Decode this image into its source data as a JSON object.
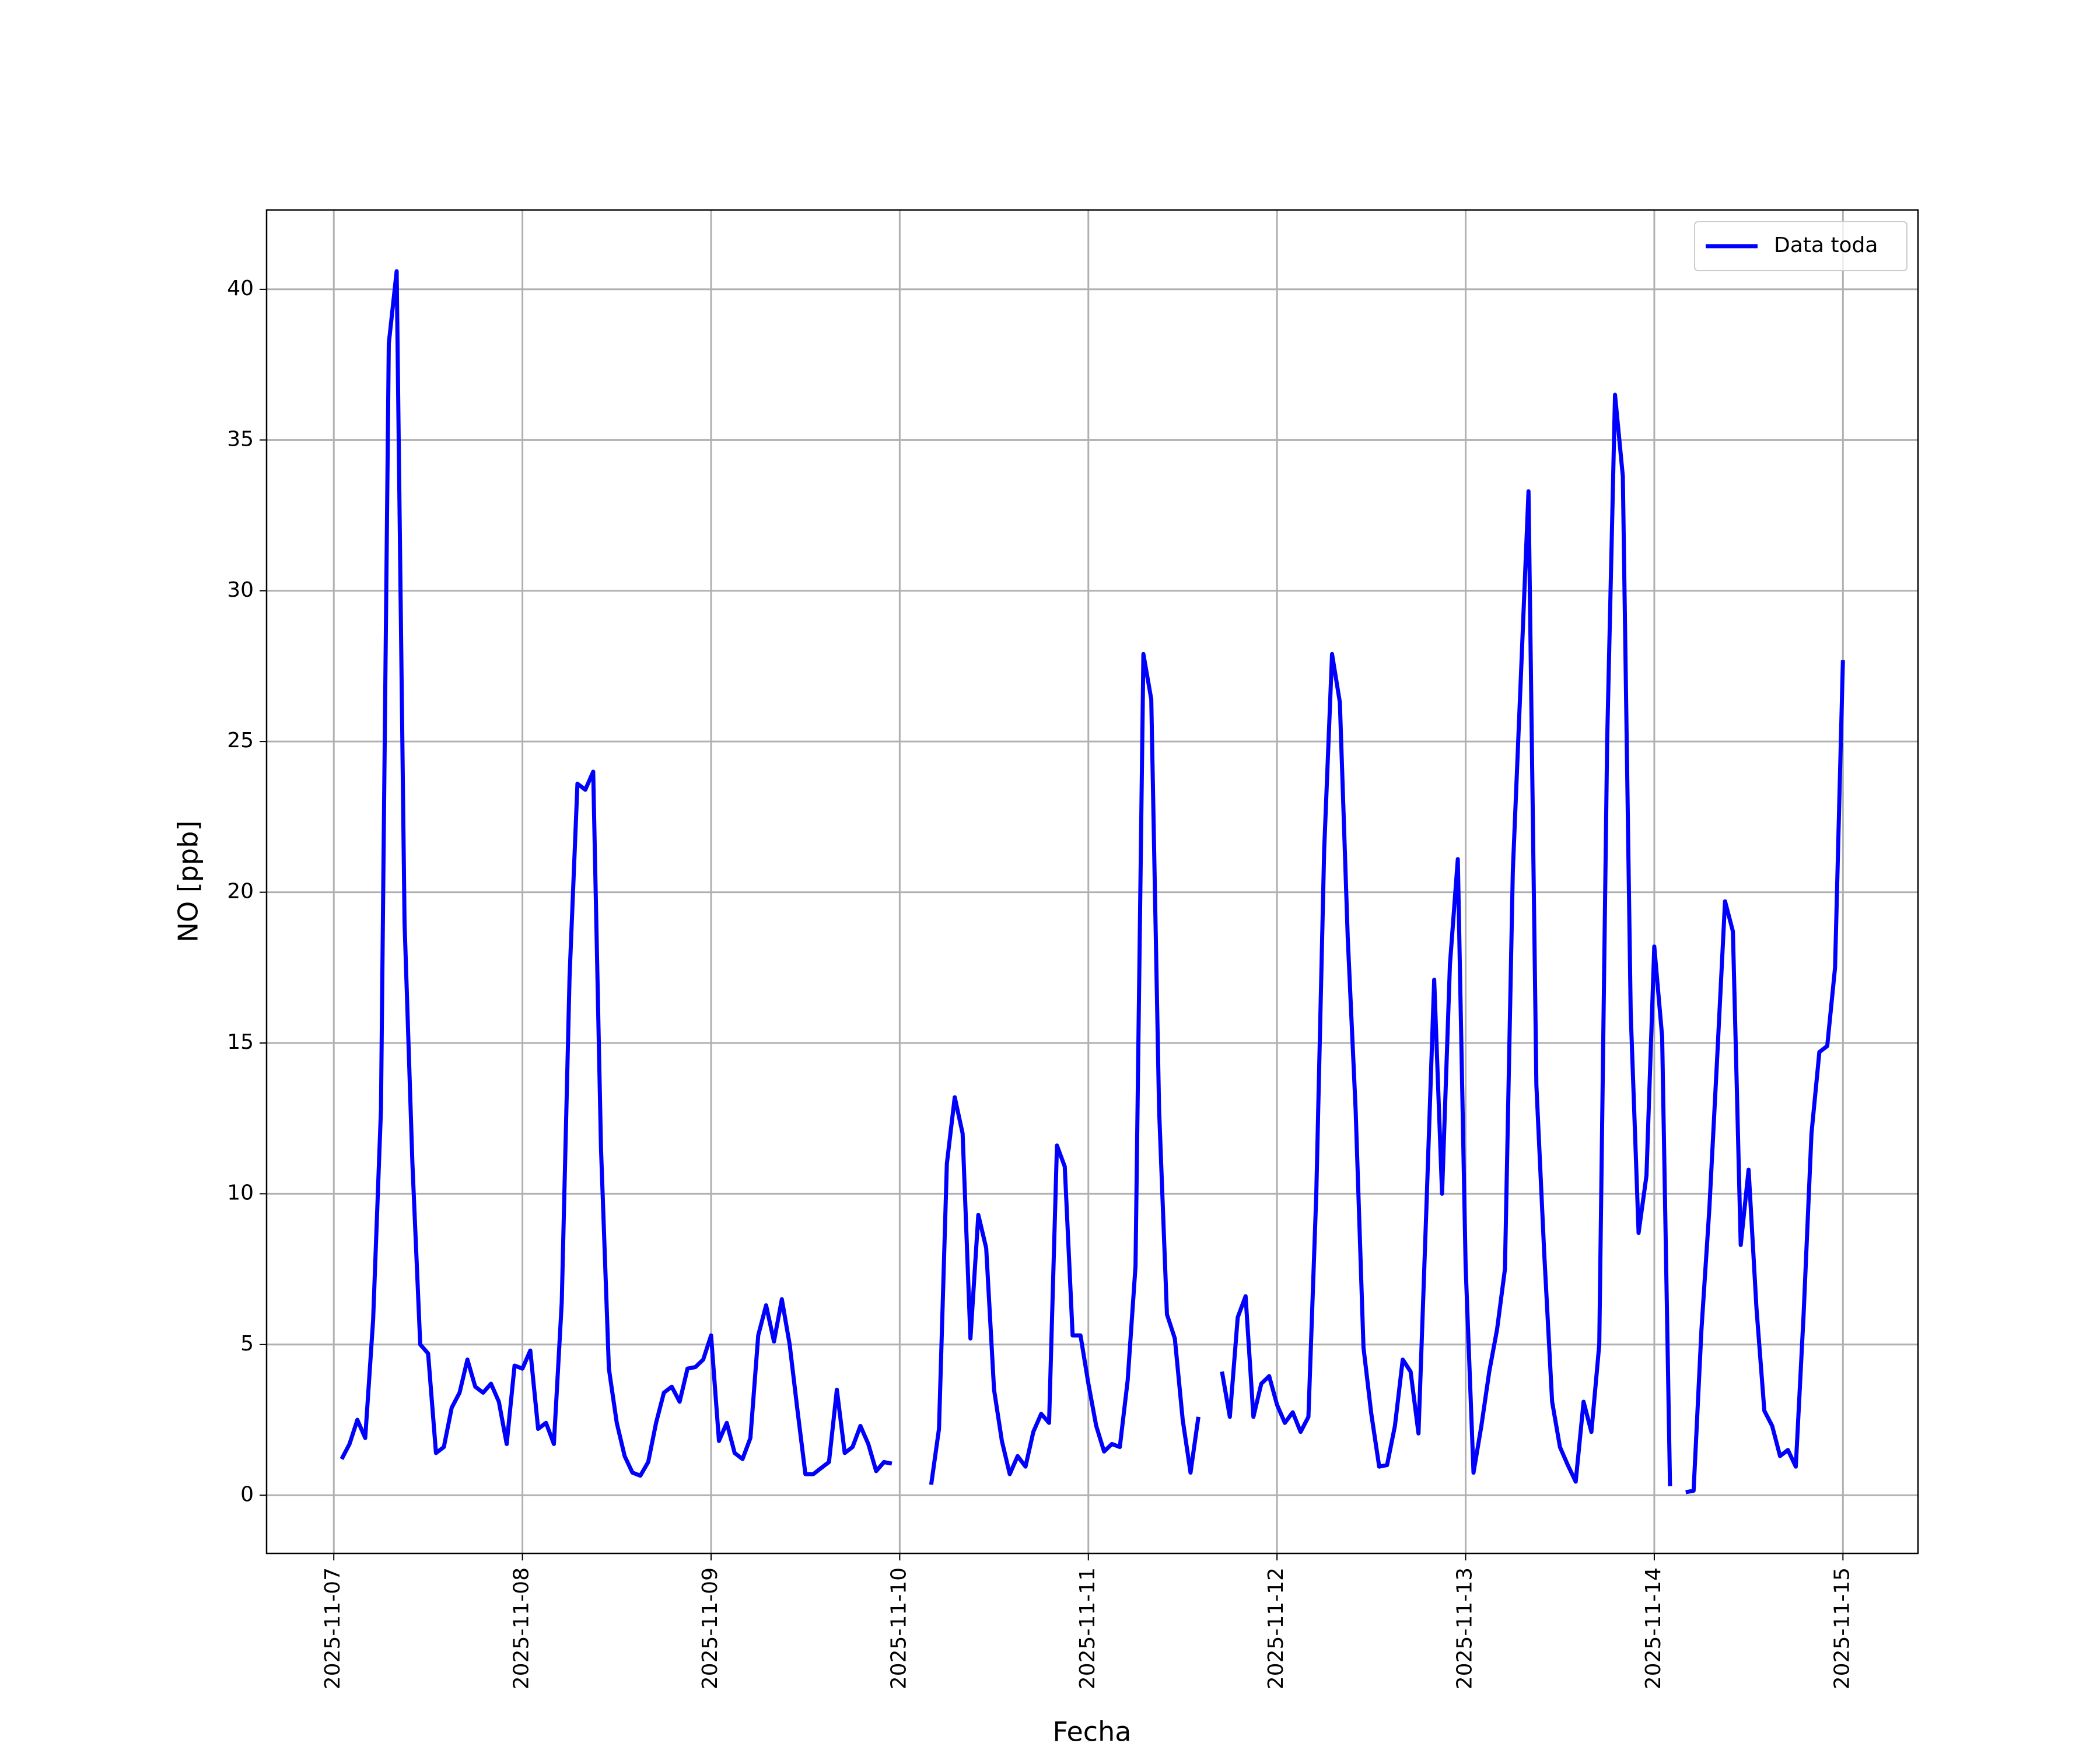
{
  "chart_data": {
    "type": "line",
    "xlabel": "Fecha",
    "ylabel": "NO [ppb]",
    "x": [
      "2025-11-07T01:00",
      "2025-11-07T02:00",
      "2025-11-07T03:00",
      "2025-11-07T04:00",
      "2025-11-07T05:00",
      "2025-11-07T06:00",
      "2025-11-07T07:00",
      "2025-11-07T08:00",
      "2025-11-07T09:00",
      "2025-11-07T10:00",
      "2025-11-07T11:00",
      "2025-11-07T12:00",
      "2025-11-07T13:00",
      "2025-11-07T14:00",
      "2025-11-07T15:00",
      "2025-11-07T16:00",
      "2025-11-07T17:00",
      "2025-11-07T18:00",
      "2025-11-07T19:00",
      "2025-11-07T20:00",
      "2025-11-07T21:00",
      "2025-11-07T22:00",
      "2025-11-07T23:00",
      "2025-11-08T00:00",
      "2025-11-08T01:00",
      "2025-11-08T02:00",
      "2025-11-08T03:00",
      "2025-11-08T04:00",
      "2025-11-08T05:00",
      "2025-11-08T06:00",
      "2025-11-08T07:00",
      "2025-11-08T08:00",
      "2025-11-08T09:00",
      "2025-11-08T10:00",
      "2025-11-08T11:00",
      "2025-11-08T12:00",
      "2025-11-08T13:00",
      "2025-11-08T14:00",
      "2025-11-08T15:00",
      "2025-11-08T16:00",
      "2025-11-08T17:00",
      "2025-11-08T18:00",
      "2025-11-08T19:00",
      "2025-11-08T20:00",
      "2025-11-08T21:00",
      "2025-11-08T22:00",
      "2025-11-08T23:00",
      "2025-11-09T00:00",
      "2025-11-09T01:00",
      "2025-11-09T02:00",
      "2025-11-09T03:00",
      "2025-11-09T04:00",
      "2025-11-09T05:00",
      "2025-11-09T06:00",
      "2025-11-09T07:00",
      "2025-11-09T08:00",
      "2025-11-09T09:00",
      "2025-11-09T10:00",
      "2025-11-09T11:00",
      "2025-11-09T12:00",
      "2025-11-09T13:00",
      "2025-11-09T14:00",
      "2025-11-09T15:00",
      "2025-11-09T16:00",
      "2025-11-09T17:00",
      "2025-11-09T18:00",
      "2025-11-09T19:00",
      "2025-11-09T20:00",
      "2025-11-09T21:00",
      "2025-11-09T22:00",
      "2025-11-09T23:00",
      "2025-11-10T00:00",
      "2025-11-10T01:00",
      "2025-11-10T02:00",
      "2025-11-10T03:00",
      "2025-11-10T04:00",
      "2025-11-10T05:00",
      "2025-11-10T06:00",
      "2025-11-10T07:00",
      "2025-11-10T08:00",
      "2025-11-10T09:00",
      "2025-11-10T10:00",
      "2025-11-10T11:00",
      "2025-11-10T12:00",
      "2025-11-10T13:00",
      "2025-11-10T14:00",
      "2025-11-10T15:00",
      "2025-11-10T16:00",
      "2025-11-10T17:00",
      "2025-11-10T18:00",
      "2025-11-10T19:00",
      "2025-11-10T20:00",
      "2025-11-10T21:00",
      "2025-11-10T22:00",
      "2025-11-10T23:00",
      "2025-11-11T00:00",
      "2025-11-11T01:00",
      "2025-11-11T02:00",
      "2025-11-11T03:00",
      "2025-11-11T04:00",
      "2025-11-11T05:00",
      "2025-11-11T06:00",
      "2025-11-11T07:00",
      "2025-11-11T08:00",
      "2025-11-11T09:00",
      "2025-11-11T10:00",
      "2025-11-11T11:00",
      "2025-11-11T12:00",
      "2025-11-11T13:00",
      "2025-11-11T14:00",
      "2025-11-11T15:00",
      "2025-11-11T16:00",
      "2025-11-11T17:00",
      "2025-11-11T18:00",
      "2025-11-11T19:00",
      "2025-11-11T20:00",
      "2025-11-11T21:00",
      "2025-11-11T22:00",
      "2025-11-11T23:00",
      "2025-11-12T00:00",
      "2025-11-12T01:00",
      "2025-11-12T02:00",
      "2025-11-12T03:00",
      "2025-11-12T04:00",
      "2025-11-12T05:00",
      "2025-11-12T06:00",
      "2025-11-12T07:00",
      "2025-11-12T08:00",
      "2025-11-12T09:00",
      "2025-11-12T10:00",
      "2025-11-12T11:00",
      "2025-11-12T12:00",
      "2025-11-12T13:00",
      "2025-11-12T14:00",
      "2025-11-12T15:00",
      "2025-11-12T16:00",
      "2025-11-12T17:00",
      "2025-11-12T18:00",
      "2025-11-12T19:00",
      "2025-11-12T20:00",
      "2025-11-12T21:00",
      "2025-11-12T22:00",
      "2025-11-12T23:00",
      "2025-11-13T00:00",
      "2025-11-13T01:00",
      "2025-11-13T02:00",
      "2025-11-13T03:00",
      "2025-11-13T04:00",
      "2025-11-13T05:00",
      "2025-11-13T06:00",
      "2025-11-13T07:00",
      "2025-11-13T08:00",
      "2025-11-13T09:00",
      "2025-11-13T10:00",
      "2025-11-13T11:00",
      "2025-11-13T12:00",
      "2025-11-13T13:00",
      "2025-11-13T14:00",
      "2025-11-13T15:00",
      "2025-11-13T16:00",
      "2025-11-13T17:00",
      "2025-11-13T18:00",
      "2025-11-13T19:00",
      "2025-11-13T20:00",
      "2025-11-13T21:00",
      "2025-11-13T22:00",
      "2025-11-13T23:00",
      "2025-11-14T00:00",
      "2025-11-14T01:00",
      "2025-11-14T02:00",
      "2025-11-14T03:00",
      "2025-11-14T04:00",
      "2025-11-14T05:00",
      "2025-11-14T06:00",
      "2025-11-14T07:00",
      "2025-11-14T08:00",
      "2025-11-14T09:00",
      "2025-11-14T10:00",
      "2025-11-14T11:00",
      "2025-11-14T12:00",
      "2025-11-14T13:00",
      "2025-11-14T14:00",
      "2025-11-14T15:00",
      "2025-11-14T16:00",
      "2025-11-14T17:00",
      "2025-11-14T18:00",
      "2025-11-14T19:00",
      "2025-11-14T20:00",
      "2025-11-14T21:00",
      "2025-11-14T22:00",
      "2025-11-14T23:00",
      "2025-11-15T00:00"
    ],
    "series": [
      {
        "name": "Data toda",
        "color": "#0000ff",
        "values": [
          1.2,
          1.7,
          2.5,
          1.9,
          5.8,
          12.8,
          38.2,
          40.6,
          19.0,
          11.0,
          5.0,
          4.7,
          1.4,
          1.6,
          2.9,
          3.4,
          4.5,
          3.6,
          3.4,
          3.7,
          3.1,
          1.7,
          4.3,
          4.2,
          4.8,
          2.2,
          2.4,
          1.7,
          6.4,
          17.2,
          23.6,
          23.4,
          24.0,
          11.5,
          4.2,
          2.4,
          1.3,
          0.75,
          0.65,
          1.1,
          2.4,
          3.4,
          3.6,
          3.1,
          4.2,
          4.25,
          4.5,
          5.3,
          1.8,
          2.4,
          1.4,
          1.2,
          1.9,
          5.3,
          6.3,
          5.1,
          6.5,
          5.0,
          2.8,
          0.7,
          0.7,
          0.9,
          1.1,
          3.5,
          1.4,
          1.6,
          2.3,
          1.7,
          0.8,
          1.1,
          1.05,
          null,
          null,
          null,
          null,
          0.35,
          2.2,
          11.0,
          13.2,
          12.0,
          5.2,
          9.3,
          8.2,
          3.5,
          1.8,
          0.7,
          1.3,
          0.95,
          2.1,
          2.7,
          2.4,
          11.6,
          10.9,
          5.3,
          5.3,
          3.7,
          2.3,
          1.45,
          1.7,
          1.6,
          3.8,
          7.6,
          27.9,
          26.4,
          12.8,
          6.0,
          5.2,
          2.5,
          0.75,
          2.6,
          null,
          null,
          4.1,
          2.6,
          5.9,
          6.6,
          2.6,
          3.7,
          3.95,
          3.0,
          2.4,
          2.75,
          2.1,
          2.6,
          10.0,
          21.4,
          27.9,
          26.3,
          18.5,
          12.8,
          4.9,
          2.7,
          0.95,
          1.0,
          2.3,
          4.5,
          4.1,
          2.05,
          9.5,
          17.1,
          10.0,
          17.6,
          21.1,
          7.6,
          0.75,
          2.3,
          4.1,
          5.5,
          7.5,
          20.7,
          27.0,
          33.3,
          13.6,
          8.0,
          3.1,
          1.6,
          1.0,
          0.45,
          3.1,
          2.1,
          5.0,
          25.0,
          36.5,
          33.8,
          16.0,
          8.7,
          10.6,
          18.2,
          15.2,
          0.3,
          null,
          0.1,
          0.15,
          5.5,
          9.5,
          14.5,
          19.7,
          18.7,
          8.3,
          10.8,
          6.2,
          2.8,
          2.3,
          1.3,
          1.5,
          0.95,
          6.0,
          12.0,
          14.7,
          14.9,
          17.5,
          27.7
        ]
      }
    ],
    "xlim": [
      "2025-11-06T15:27",
      "2025-11-15T09:33"
    ],
    "xticks": [
      "2025-11-07",
      "2025-11-08",
      "2025-11-09",
      "2025-11-10",
      "2025-11-11",
      "2025-11-12",
      "2025-11-13",
      "2025-11-14",
      "2025-11-15"
    ],
    "ylim": [
      -1.93,
      42.63
    ],
    "yticks": [
      0,
      5,
      10,
      15,
      20,
      25,
      30,
      35,
      40
    ],
    "grid": true,
    "legend": "upper right"
  }
}
